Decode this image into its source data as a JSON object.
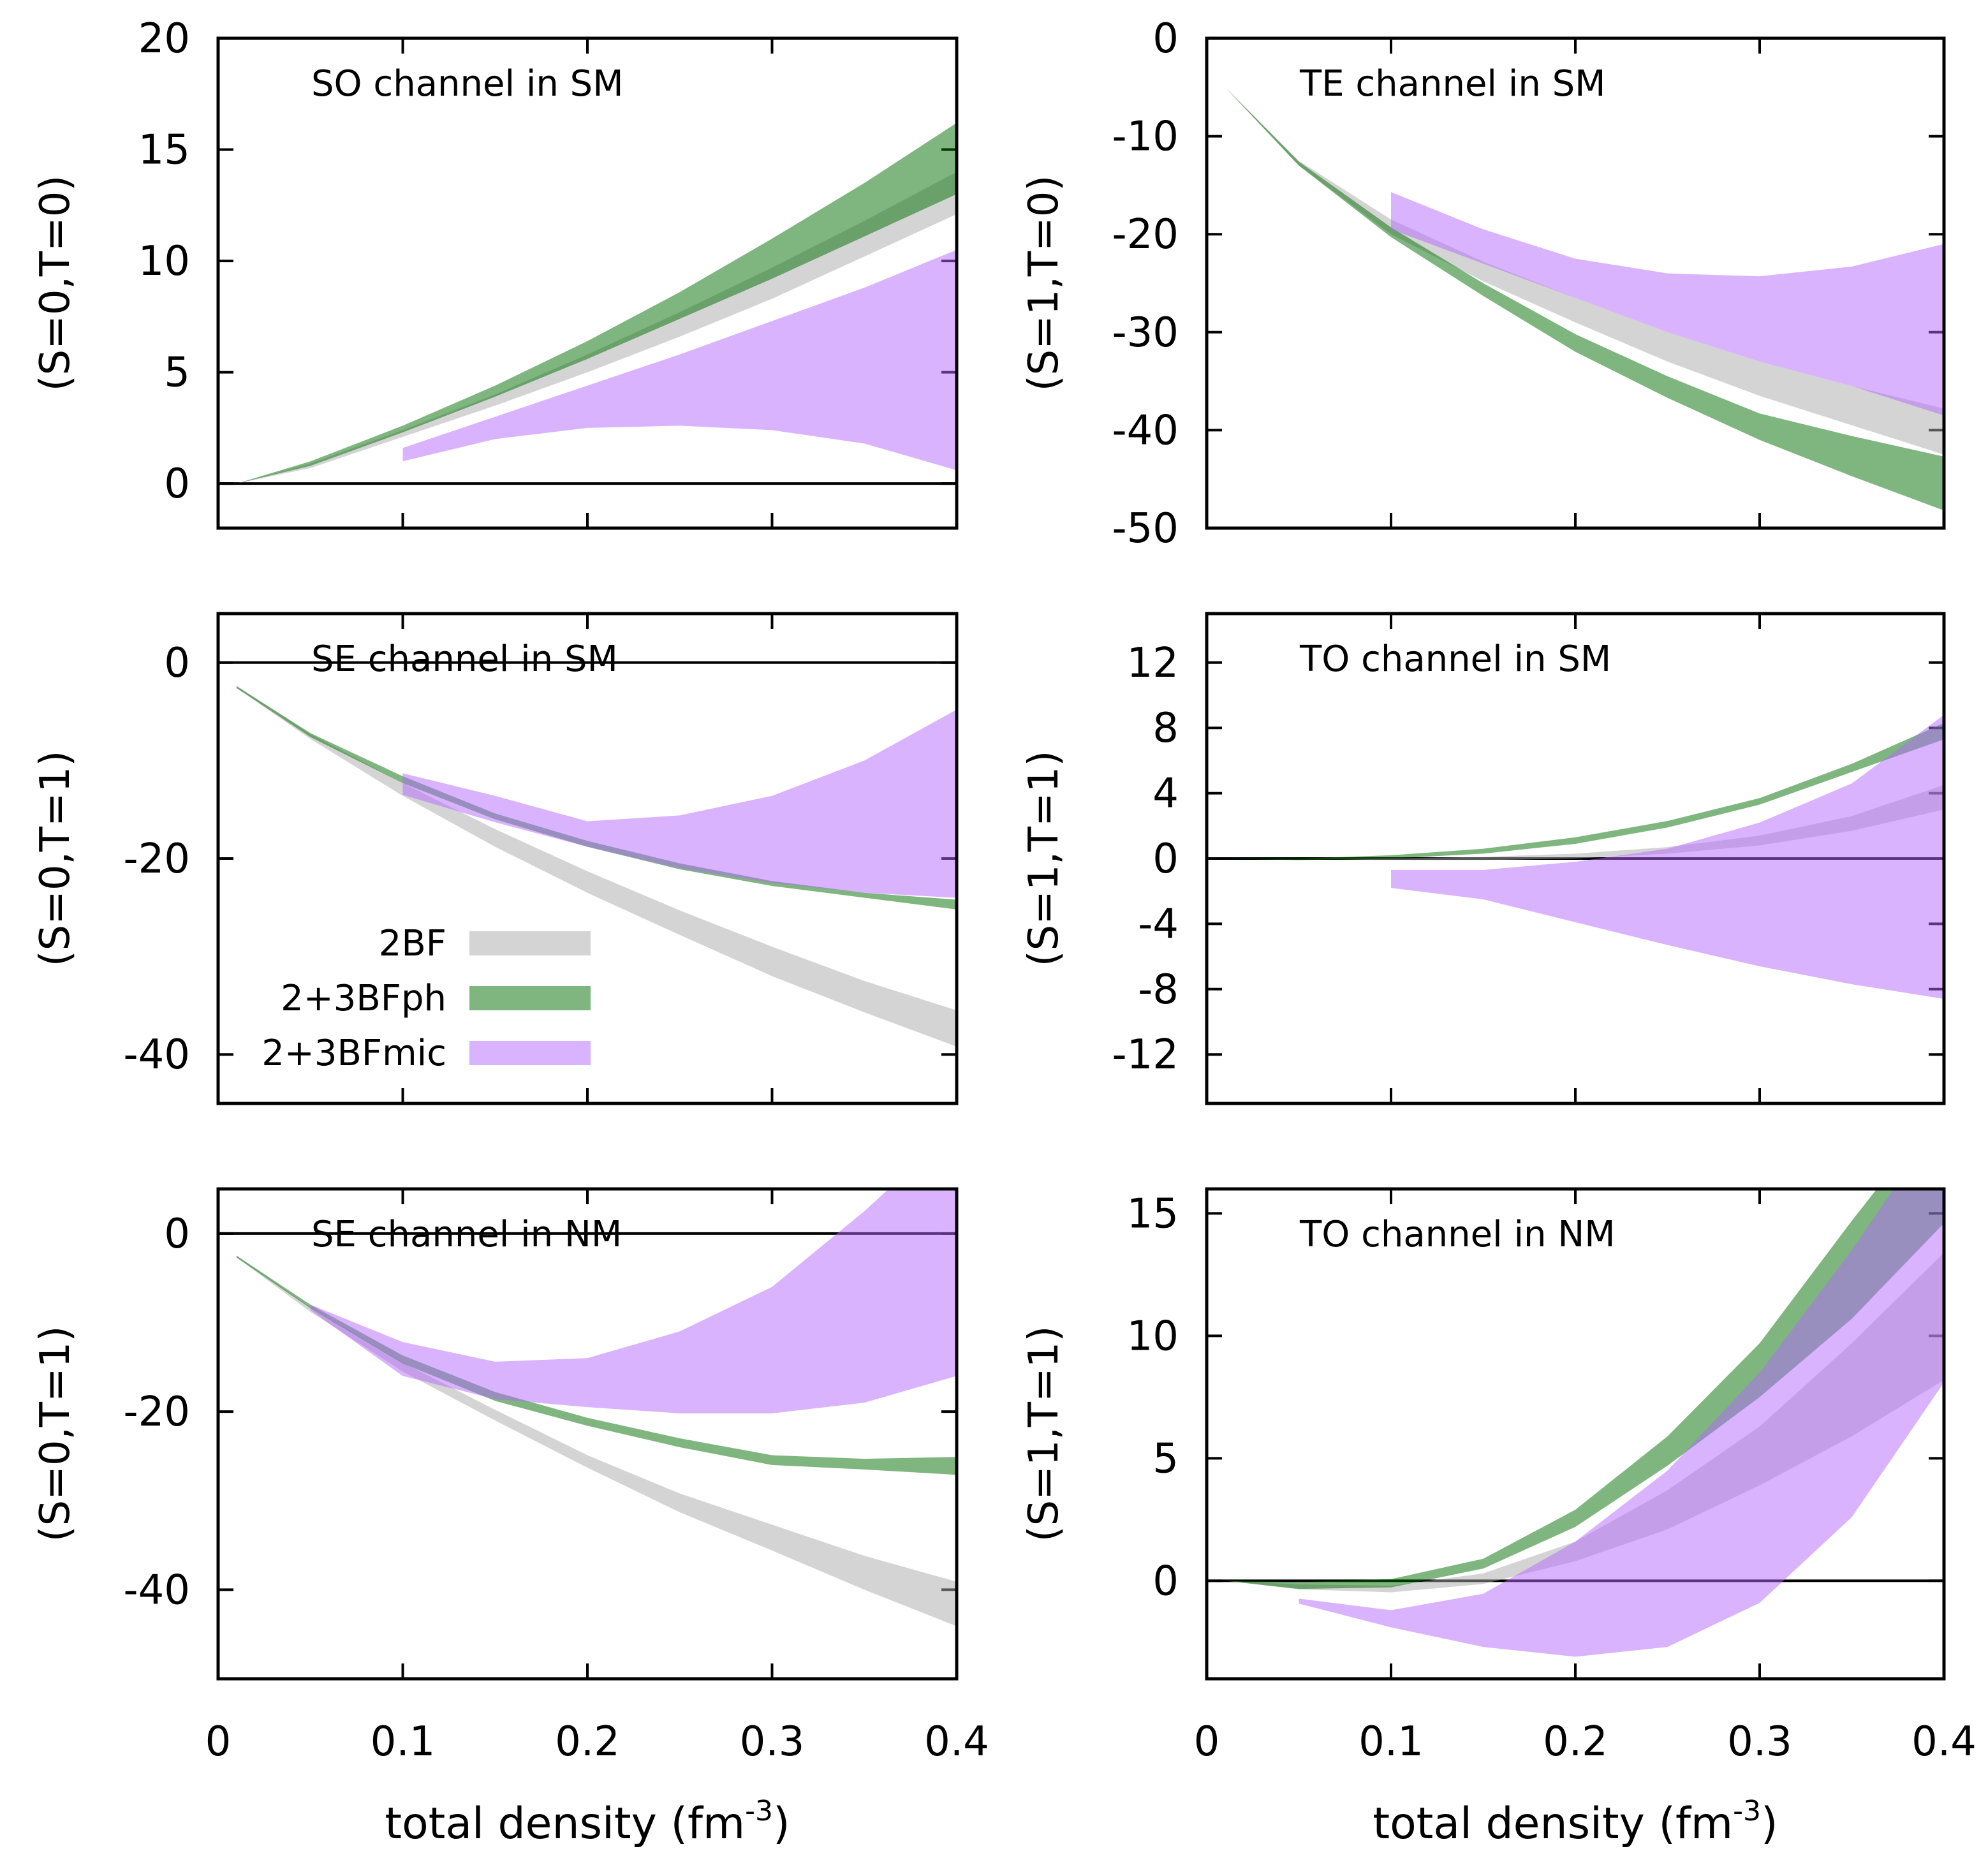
{
  "legend": {
    "entries": [
      {
        "label": "2BF",
        "color": "#aaaaaa"
      },
      {
        "label": "2+3BFph",
        "color": "#006e00"
      },
      {
        "label": "2+3BFmic",
        "color": "#b367fd"
      }
    ]
  },
  "chart_data": [
    {
      "type": "area",
      "title": "SO channel in SM",
      "ylabel": "(S=0,T=0)",
      "xlabel": "",
      "xlim": [
        0,
        0.4
      ],
      "ylim": [
        -2,
        20
      ],
      "yticks": [
        0,
        5,
        10,
        15,
        20
      ],
      "xticks": [
        0,
        0.1,
        0.2,
        0.3,
        0.4
      ],
      "xticklabels_shown": false,
      "zero_line": true,
      "series": [
        {
          "name": "2BF",
          "x": [
            0.01,
            0.05,
            0.1,
            0.15,
            0.2,
            0.25,
            0.3,
            0.35,
            0.4
          ],
          "lower": [
            0,
            0.7,
            2.1,
            3.5,
            5.0,
            6.6,
            8.3,
            10.2,
            12.1
          ],
          "upper": [
            0,
            0.9,
            2.4,
            4.0,
            5.8,
            7.7,
            9.7,
            11.8,
            14.0
          ]
        },
        {
          "name": "2+3BFph",
          "x": [
            0.01,
            0.05,
            0.1,
            0.15,
            0.2,
            0.25,
            0.3,
            0.35,
            0.4
          ],
          "lower": [
            0,
            0.8,
            2.3,
            3.9,
            5.6,
            7.4,
            9.2,
            11.1,
            13.0
          ],
          "upper": [
            0,
            1.0,
            2.6,
            4.4,
            6.4,
            8.6,
            11.0,
            13.5,
            16.2
          ]
        },
        {
          "name": "2+3BFmic",
          "x": [
            0.1,
            0.15,
            0.2,
            0.25,
            0.3,
            0.35,
            0.4
          ],
          "lower": [
            1.0,
            2.0,
            2.5,
            2.6,
            2.4,
            1.8,
            0.6
          ],
          "upper": [
            1.6,
            3.0,
            4.4,
            5.8,
            7.3,
            8.8,
            10.5
          ]
        }
      ]
    },
    {
      "type": "area",
      "title": "TE channel in SM",
      "ylabel": "(S=1,T=0)",
      "xlabel": "",
      "xlim": [
        0,
        0.4
      ],
      "ylim": [
        -50,
        0
      ],
      "yticks": [
        0,
        -10,
        -20,
        -30,
        -40,
        -50
      ],
      "xticks": [
        0,
        0.1,
        0.2,
        0.3,
        0.4
      ],
      "xticklabels_shown": false,
      "zero_line": false,
      "series": [
        {
          "name": "2BF",
          "x": [
            0.01,
            0.05,
            0.1,
            0.15,
            0.2,
            0.25,
            0.3,
            0.35,
            0.4
          ],
          "lower": [
            -5,
            -13,
            -20,
            -24.8,
            -29,
            -33,
            -36.5,
            -39.5,
            -42.5
          ],
          "upper": [
            -5,
            -12.5,
            -18.5,
            -22.8,
            -26.5,
            -30,
            -33,
            -35.5,
            -37.8
          ]
        },
        {
          "name": "2+3BFph",
          "x": [
            0.01,
            0.05,
            0.1,
            0.15,
            0.2,
            0.25,
            0.3,
            0.35,
            0.4
          ],
          "lower": [
            -5,
            -13,
            -20.3,
            -26.3,
            -32,
            -36.7,
            -41,
            -44.7,
            -48.2
          ],
          "upper": [
            -5,
            -12.6,
            -19.3,
            -25,
            -30.2,
            -34.5,
            -38.3,
            -40.6,
            -42.7
          ]
        },
        {
          "name": "2+3BFmic",
          "x": [
            0.1,
            0.15,
            0.2,
            0.25,
            0.3,
            0.35,
            0.4
          ],
          "lower": [
            -19.5,
            -23,
            -26.5,
            -30,
            -33,
            -35.5,
            -38.5
          ],
          "upper": [
            -15.7,
            -19.5,
            -22.5,
            -24,
            -24.3,
            -23.3,
            -21
          ]
        }
      ]
    },
    {
      "type": "area",
      "title": "SE channel in SM",
      "ylabel": "(S=0,T=1)",
      "xlabel": "",
      "xlim": [
        0,
        0.4
      ],
      "ylim": [
        -45,
        5
      ],
      "yticks": [
        0,
        -20,
        -40
      ],
      "xticks": [
        0,
        0.1,
        0.2,
        0.3,
        0.4
      ],
      "xticklabels_shown": false,
      "zero_line": true,
      "has_legend": true,
      "series": [
        {
          "name": "2BF",
          "x": [
            0.01,
            0.05,
            0.1,
            0.15,
            0.2,
            0.25,
            0.3,
            0.35,
            0.4
          ],
          "lower": [
            -2.6,
            -7.8,
            -13.6,
            -18.8,
            -23.5,
            -27.8,
            -32,
            -35.7,
            -39.2
          ],
          "upper": [
            -2.4,
            -7.3,
            -12.3,
            -17,
            -21.3,
            -25.3,
            -29,
            -32.5,
            -35.5
          ]
        },
        {
          "name": "2+3BFph",
          "x": [
            0.01,
            0.05,
            0.1,
            0.15,
            0.2,
            0.25,
            0.3,
            0.35,
            0.4
          ],
          "lower": [
            -2.6,
            -7.6,
            -12.3,
            -16,
            -18.8,
            -21.1,
            -22.8,
            -24,
            -25.2
          ],
          "upper": [
            -2.4,
            -7.2,
            -11.6,
            -15.4,
            -18.2,
            -20.5,
            -22.3,
            -23.5,
            -24.2
          ]
        },
        {
          "name": "2+3BFmic",
          "x": [
            0.1,
            0.15,
            0.2,
            0.25,
            0.3,
            0.35,
            0.4
          ],
          "lower": [
            -13.5,
            -16.3,
            -18.8,
            -21,
            -22.5,
            -23.5,
            -24
          ],
          "upper": [
            -11.3,
            -13.6,
            -16.2,
            -15.6,
            -13.6,
            -10,
            -4.8
          ]
        }
      ]
    },
    {
      "type": "area",
      "title": "TO channel in SM",
      "ylabel": "(S=1,T=1)",
      "xlabel": "",
      "xlim": [
        0,
        0.4
      ],
      "ylim": [
        -15,
        15
      ],
      "yticks": [
        12,
        8,
        4,
        0,
        -4,
        -8,
        -12
      ],
      "xticks": [
        0,
        0.1,
        0.2,
        0.3,
        0.4
      ],
      "xticklabels_shown": false,
      "zero_line": true,
      "series": [
        {
          "name": "2BF",
          "x": [
            0.01,
            0.05,
            0.1,
            0.15,
            0.2,
            0.25,
            0.3,
            0.35,
            0.4
          ],
          "lower": [
            0,
            0,
            -0.1,
            -0.1,
            0,
            0.3,
            0.8,
            1.7,
            3.0
          ],
          "upper": [
            0,
            0,
            0,
            0.1,
            0.3,
            0.7,
            1.4,
            2.6,
            4.5
          ]
        },
        {
          "name": "2+3BFph",
          "x": [
            0.01,
            0.05,
            0.1,
            0.15,
            0.2,
            0.25,
            0.3,
            0.35,
            0.4
          ],
          "lower": [
            0,
            -0.1,
            0,
            0.3,
            0.9,
            1.9,
            3.3,
            5.3,
            7.3
          ],
          "upper": [
            0,
            0,
            0.2,
            0.6,
            1.3,
            2.3,
            3.7,
            5.8,
            8.3
          ]
        },
        {
          "name": "2+3BFmic",
          "x": [
            0.1,
            0.15,
            0.2,
            0.25,
            0.3,
            0.35,
            0.4
          ],
          "lower": [
            -1.8,
            -2.5,
            -3.9,
            -5.3,
            -6.6,
            -7.7,
            -8.6
          ],
          "upper": [
            -0.7,
            -0.7,
            -0.2,
            0.6,
            2.2,
            4.6,
            8.8
          ]
        }
      ]
    },
    {
      "type": "area",
      "title": "SE channel in NM",
      "ylabel": "(S=0,T=1)",
      "xlabel": "total density (fm",
      "xlabel_sup": "-3",
      "xlabel_end": ")",
      "xlim": [
        0,
        0.4
      ],
      "ylim": [
        -50,
        5
      ],
      "yticks": [
        0,
        -20,
        -40
      ],
      "xticks": [
        0,
        0.1,
        0.2,
        0.3,
        0.4
      ],
      "xticklabels": [
        "0",
        "0.1",
        "0.2",
        "0.3",
        "0.4"
      ],
      "xticklabels_shown": true,
      "zero_line": true,
      "series": [
        {
          "name": "2BF",
          "x": [
            0.01,
            0.05,
            0.1,
            0.15,
            0.2,
            0.25,
            0.3,
            0.35,
            0.4
          ],
          "lower": [
            -2.7,
            -8.8,
            -15.5,
            -21,
            -26.3,
            -31.3,
            -35.6,
            -40,
            -44.1
          ],
          "upper": [
            -2.5,
            -8.3,
            -14.5,
            -19.8,
            -24.9,
            -29.2,
            -32.7,
            -36.2,
            -39.1
          ]
        },
        {
          "name": "2+3BFph",
          "x": [
            0.01,
            0.05,
            0.1,
            0.15,
            0.2,
            0.25,
            0.3,
            0.35,
            0.4
          ],
          "lower": [
            -2.7,
            -8.4,
            -14.6,
            -18.8,
            -21.6,
            -24,
            -26,
            -26.5,
            -27.1
          ],
          "upper": [
            -2.5,
            -8,
            -13.7,
            -17.8,
            -20.7,
            -23,
            -24.9,
            -25.3,
            -25.1
          ]
        },
        {
          "name": "2+3BFmic",
          "x": [
            0.05,
            0.1,
            0.15,
            0.2,
            0.25,
            0.3,
            0.35,
            0.4
          ],
          "lower": [
            -8.6,
            -16,
            -18.6,
            -19.5,
            -20.2,
            -20.2,
            -19,
            -16
          ],
          "upper": [
            -8,
            -12.2,
            -14.4,
            -14,
            -11,
            -6,
            2.5,
            12
          ]
        }
      ]
    },
    {
      "type": "area",
      "title": "TO channel in NM",
      "ylabel": "(S=1,T=1)",
      "xlabel": "total density (fm",
      "xlabel_sup": "-3",
      "xlabel_end": ")",
      "xlim": [
        0,
        0.4
      ],
      "ylim": [
        -4,
        16
      ],
      "yticks": [
        0,
        5,
        10,
        15
      ],
      "xticks": [
        0,
        0.1,
        0.2,
        0.3,
        0.4
      ],
      "xticklabels": [
        "0",
        "0.1",
        "0.2",
        "0.3",
        "0.4"
      ],
      "xticklabels_shown": true,
      "zero_line": true,
      "series": [
        {
          "name": "2BF",
          "x": [
            0.01,
            0.05,
            0.1,
            0.15,
            0.2,
            0.25,
            0.3,
            0.35,
            0.4
          ],
          "lower": [
            0,
            -0.35,
            -0.47,
            -0.13,
            0.8,
            2.1,
            3.9,
            5.9,
            8.2
          ],
          "upper": [
            0,
            -0.15,
            -0.2,
            0.3,
            1.6,
            3.7,
            6.3,
            9.7,
            13.4
          ]
        },
        {
          "name": "2+3BFph",
          "x": [
            0.01,
            0.05,
            0.1,
            0.15,
            0.2,
            0.25,
            0.3,
            0.35,
            0.4
          ],
          "lower": [
            0,
            -0.33,
            -0.27,
            0.5,
            2.2,
            4.7,
            7.5,
            10.7,
            14.6
          ],
          "upper": [
            0,
            -0.05,
            0.07,
            0.9,
            2.9,
            5.9,
            9.7,
            14.7,
            19.5
          ]
        },
        {
          "name": "2+3BFmic",
          "x": [
            0.05,
            0.1,
            0.15,
            0.2,
            0.25,
            0.3,
            0.35,
            0.4
          ],
          "lower": [
            -0.93,
            -1.9,
            -2.7,
            -3.1,
            -2.7,
            -0.9,
            2.6,
            8.1
          ],
          "upper": [
            -0.73,
            -1.2,
            -0.53,
            1.6,
            4.5,
            8.5,
            13.5,
            19
          ]
        }
      ]
    }
  ]
}
